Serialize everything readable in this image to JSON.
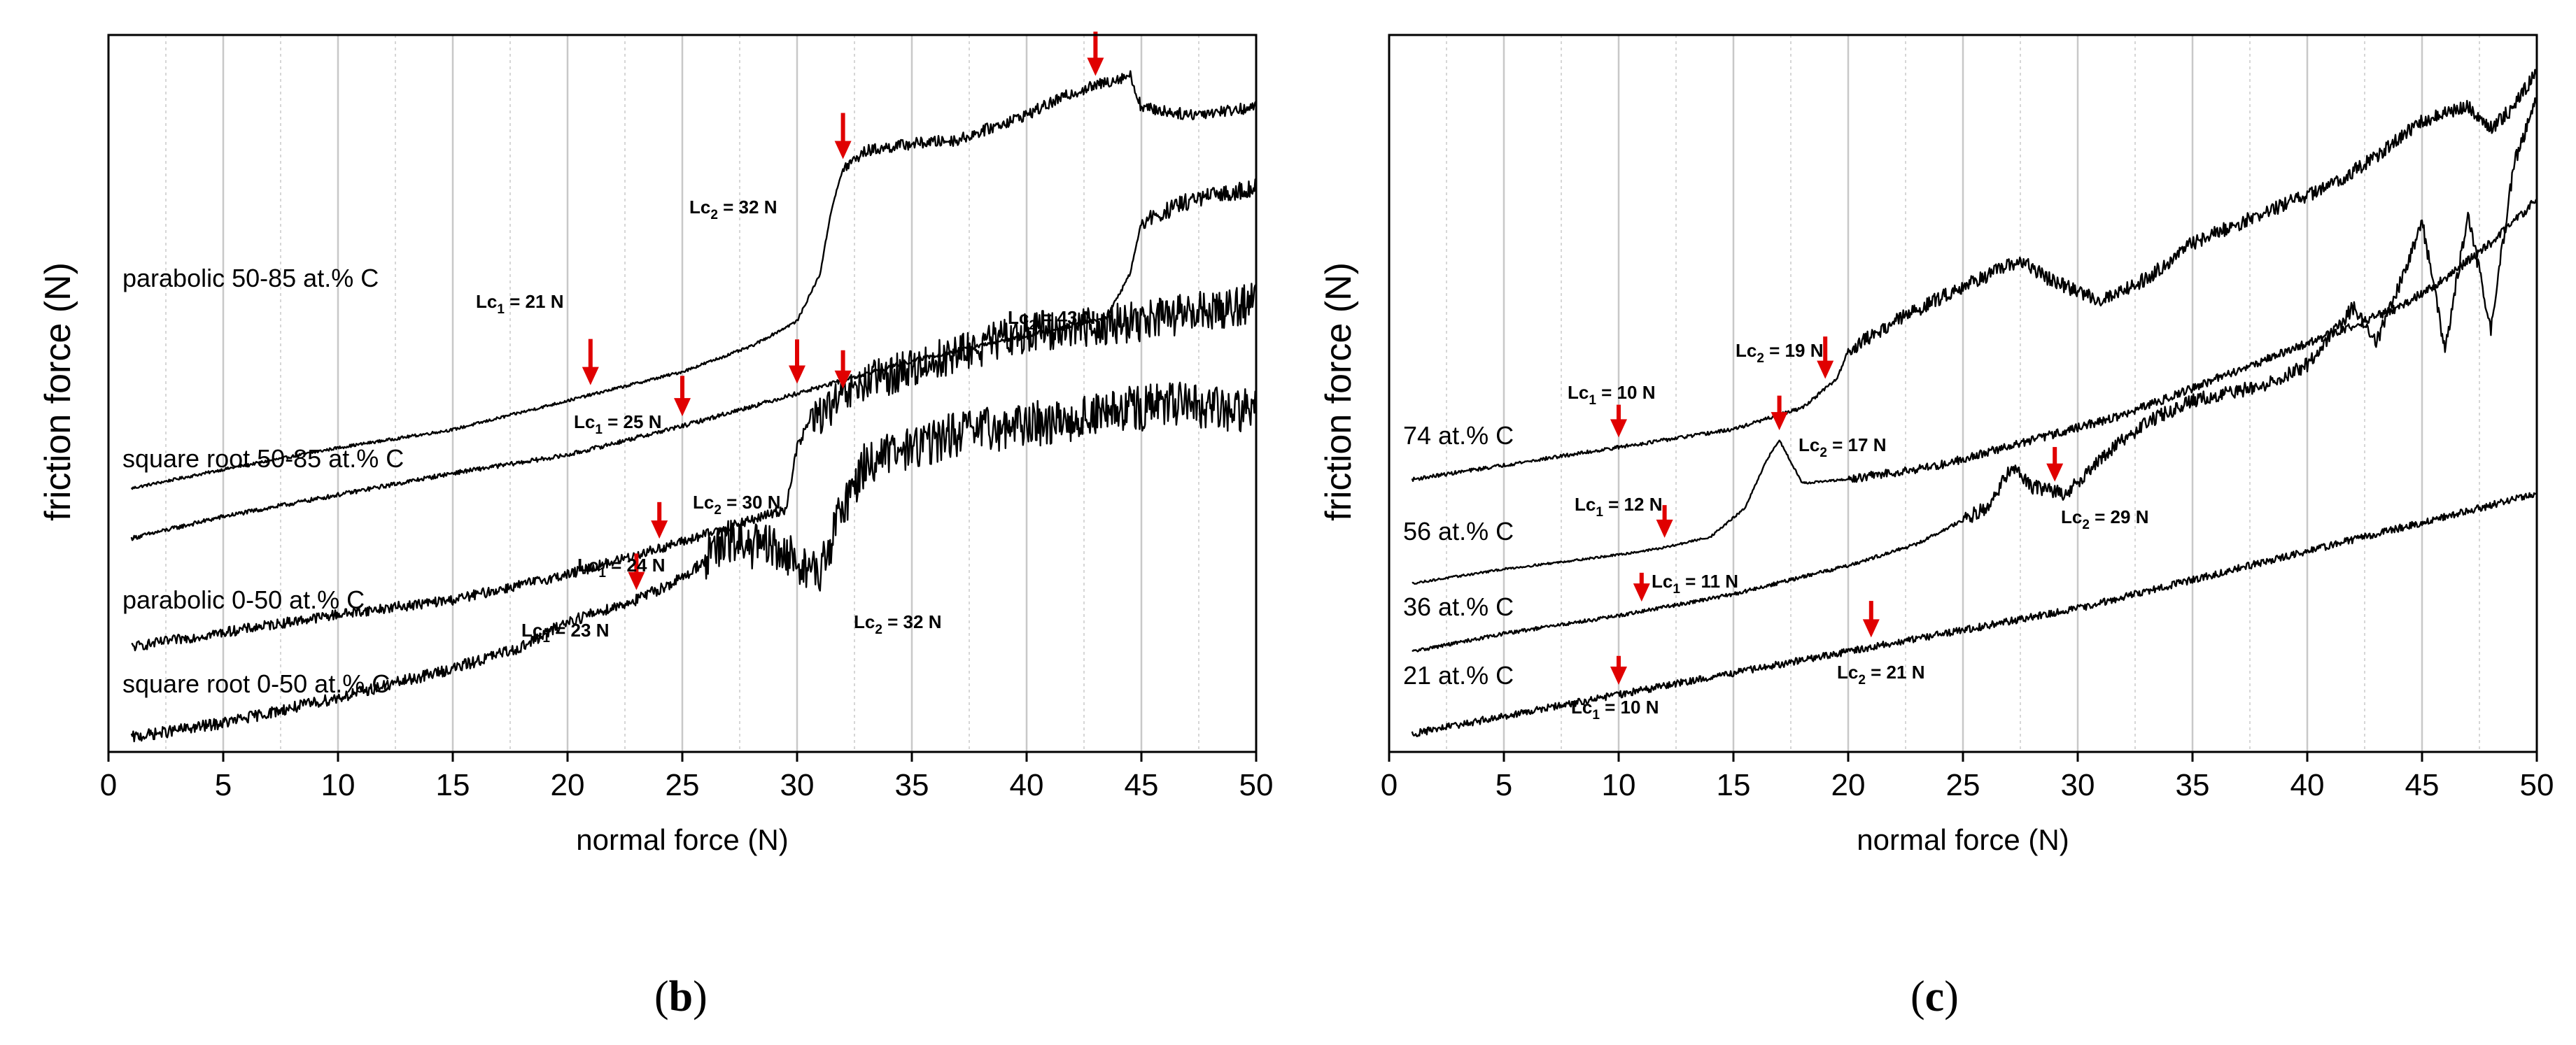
{
  "chart_data": [
    {
      "type": "line",
      "panel": "b",
      "xlabel": "normal force (N)",
      "ylabel": "friction force (N)",
      "xlim": [
        0,
        50
      ],
      "xticks": [
        0,
        5,
        10,
        15,
        20,
        25,
        30,
        35,
        40,
        45,
        50
      ],
      "grid": true,
      "series": [
        {
          "name": "parabolic 50-85 at.% C",
          "points": [
            [
              1,
              0.64
            ],
            [
              5,
              0.9
            ],
            [
              10,
              1.2
            ],
            [
              15,
              1.45
            ],
            [
              20,
              1.85
            ],
            [
              25,
              2.25
            ],
            [
              28,
              2.6
            ],
            [
              30,
              2.95
            ],
            [
              31,
              3.6
            ],
            [
              31.5,
              4.5
            ],
            [
              32,
              5.05
            ],
            [
              33,
              5.3
            ],
            [
              35,
              5.4
            ],
            [
              37,
              5.45
            ],
            [
              40,
              5.8
            ],
            [
              42,
              6.1
            ],
            [
              44.5,
              6.35
            ],
            [
              45,
              5.9
            ],
            [
              47,
              5.8
            ],
            [
              50,
              5.9
            ]
          ],
          "noise": 0.08,
          "noise_from": 32
        },
        {
          "name": "square root 50-85 at.% C",
          "points": [
            [
              1,
              -0.05
            ],
            [
              5,
              0.25
            ],
            [
              10,
              0.55
            ],
            [
              15,
              0.85
            ],
            [
              20,
              1.1
            ],
            [
              25,
              1.5
            ],
            [
              30,
              1.95
            ],
            [
              35,
              2.4
            ],
            [
              40,
              2.75
            ],
            [
              43.5,
              3.0
            ],
            [
              44.5,
              3.6
            ],
            [
              45,
              4.3
            ],
            [
              47,
              4.6
            ],
            [
              50,
              4.8
            ]
          ],
          "noise": 0.12,
          "noise_from": 45
        },
        {
          "name": "parabolic 0-50 at.% C",
          "points": [
            [
              1,
              -1.55
            ],
            [
              5,
              -1.35
            ],
            [
              10,
              -1.1
            ],
            [
              15,
              -0.9
            ],
            [
              20,
              -0.55
            ],
            [
              25,
              -0.1
            ],
            [
              29.5,
              0.35
            ],
            [
              30,
              1.2
            ],
            [
              30.5,
              1.55
            ],
            [
              33,
              2.1
            ],
            [
              36,
              2.4
            ],
            [
              40,
              2.8
            ],
            [
              45,
              2.95
            ],
            [
              50,
              3.2
            ]
          ],
          "noise": 0.28,
          "noise_from": 30.5
        },
        {
          "name": "square root 0-50 at.% C",
          "points": [
            [
              1,
              -2.8
            ],
            [
              5,
              -2.6
            ],
            [
              10,
              -2.25
            ],
            [
              15,
              -1.85
            ],
            [
              18,
              -1.55
            ],
            [
              20,
              -1.2
            ],
            [
              23,
              -0.9
            ],
            [
              25,
              -0.6
            ],
            [
              27,
              -0.1
            ],
            [
              29,
              -0.2
            ],
            [
              31,
              -0.55
            ],
            [
              32,
              0.4
            ],
            [
              33,
              1.0
            ],
            [
              37,
              1.4
            ],
            [
              42,
              1.6
            ],
            [
              46,
              1.8
            ],
            [
              50,
              1.7
            ]
          ],
          "noise": 0.32,
          "noise_from": 26
        },
        {
          "name": "Lc1 = 21 N",
          "value": 21
        },
        {
          "name": "Lc2 = 32 N",
          "value": 32
        },
        {
          "name": "Lc1 = 25 N",
          "value": 25
        },
        {
          "name": "Lc2 = 43 N",
          "value": 43
        },
        {
          "name": "Lc1 = 24 N",
          "value": 24
        },
        {
          "name": "Lc2 = 30 N",
          "value": 30
        },
        {
          "name": "Lc1 = 23 N",
          "value": 23
        },
        {
          "name": "Lc2 = 32 N",
          "value": 32
        }
      ]
    },
    {
      "type": "line",
      "panel": "c",
      "xlabel": "normal force (N)",
      "ylabel": "friction force (N)",
      "xlim": [
        0,
        50
      ],
      "xticks": [
        0,
        5,
        10,
        15,
        20,
        25,
        30,
        35,
        40,
        45,
        50
      ],
      "grid": true,
      "series": [
        {
          "name": "74 at.% C",
          "points": [
            [
              1,
              3.5
            ],
            [
              5,
              3.7
            ],
            [
              10,
              3.95
            ],
            [
              15,
              4.2
            ],
            [
              18,
              4.5
            ],
            [
              19.5,
              4.9
            ],
            [
              20,
              5.3
            ],
            [
              22,
              5.7
            ],
            [
              25,
              6.2
            ],
            [
              27.5,
              6.55
            ],
            [
              29,
              6.25
            ],
            [
              31,
              6.0
            ],
            [
              33,
              6.3
            ],
            [
              35,
              6.8
            ],
            [
              38,
              7.2
            ],
            [
              41,
              7.6
            ],
            [
              43,
              8.0
            ],
            [
              45,
              8.5
            ],
            [
              47,
              8.7
            ],
            [
              48,
              8.4
            ],
            [
              49,
              8.7
            ],
            [
              50,
              9.2
            ]
          ],
          "noise": 0.1,
          "noise_from": 20
        },
        {
          "name": "56 at.% C",
          "points": [
            [
              1,
              2.05
            ],
            [
              5,
              2.25
            ],
            [
              10,
              2.45
            ],
            [
              12,
              2.55
            ],
            [
              14,
              2.7
            ],
            [
              15.5,
              3.1
            ],
            [
              16.5,
              3.8
            ],
            [
              17,
              4.05
            ],
            [
              18,
              3.45
            ],
            [
              20,
              3.5
            ],
            [
              24,
              3.7
            ],
            [
              28,
              4.05
            ],
            [
              32,
              4.4
            ],
            [
              36,
              4.9
            ],
            [
              40,
              5.4
            ],
            [
              44,
              5.9
            ],
            [
              46,
              6.3
            ],
            [
              48,
              6.8
            ],
            [
              50,
              7.4
            ]
          ],
          "noise": 0.06,
          "noise_from": 20
        },
        {
          "name": "36 at.% C",
          "points": [
            [
              1,
              1.1
            ],
            [
              5,
              1.35
            ],
            [
              10,
              1.6
            ],
            [
              15,
              1.9
            ],
            [
              20,
              2.3
            ],
            [
              23,
              2.6
            ],
            [
              26,
              3.1
            ],
            [
              27.2,
              3.7
            ],
            [
              28,
              3.4
            ],
            [
              29.5,
              3.3
            ],
            [
              31,
              3.8
            ],
            [
              33,
              4.3
            ],
            [
              35,
              4.6
            ],
            [
              38,
              4.8
            ],
            [
              40,
              5.1
            ],
            [
              42,
              5.9
            ],
            [
              43,
              5.4
            ],
            [
              44,
              6.2
            ],
            [
              45,
              7.1
            ],
            [
              46,
              5.3
            ],
            [
              47,
              7.2
            ],
            [
              48,
              5.6
            ],
            [
              49,
              7.9
            ],
            [
              50,
              8.8
            ]
          ],
          "noise": 0.1,
          "noise_from": 25
        },
        {
          "name": "21 at.% C",
          "points": [
            [
              1,
              -0.05
            ],
            [
              5,
              0.2
            ],
            [
              10,
              0.5
            ],
            [
              15,
              0.8
            ],
            [
              20,
              1.1
            ],
            [
              25,
              1.4
            ],
            [
              30,
              1.7
            ],
            [
              35,
              2.1
            ],
            [
              40,
              2.5
            ],
            [
              45,
              2.9
            ],
            [
              50,
              3.3
            ]
          ],
          "noise": 0.05,
          "noise_from": 1
        },
        {
          "name": "Lc1 = 10 N",
          "value": 10
        },
        {
          "name": "Lc2 = 19 N",
          "value": 19
        },
        {
          "name": "Lc2 = 17 N",
          "value": 17
        },
        {
          "name": "Lc1 = 12 N",
          "value": 12
        },
        {
          "name": "Lc1 = 11 N",
          "value": 11
        },
        {
          "name": "Lc2 = 29 N",
          "value": 29
        },
        {
          "name": "Lc1 = 10 N",
          "value": 10
        },
        {
          "name": "Lc2 = 21 N",
          "value": 21
        }
      ]
    }
  ],
  "panels": {
    "b": {
      "letter": "b",
      "series_labels": [
        "parabolic 50-85 at.% C",
        "square root 50-85 at.% C",
        "parabolic 0-50 at.% C",
        "square root 0-50 at.% C"
      ],
      "annotations": [
        "Lc",
        "1",
        " = 21 N",
        "Lc",
        "2",
        " = 32 N",
        "Lc",
        "1",
        " = 25 N",
        "Lc",
        "2",
        " = 43 N",
        "Lc",
        "1",
        " = 24 N",
        "Lc",
        "2",
        " = 30 N",
        "Lc",
        "1",
        " = 23 N",
        "Lc",
        "2",
        " = 32 N"
      ]
    },
    "c": {
      "letter": "c",
      "series_labels": [
        "74 at.% C",
        "56 at.% C",
        "36 at.% C",
        "21 at.% C"
      ],
      "annotations": [
        "Lc",
        "1",
        " = 10 N",
        "Lc",
        "2",
        " = 19 N",
        "Lc",
        "2",
        " = 17 N",
        "Lc",
        "1",
        " = 12 N",
        "Lc",
        "1",
        " = 11 N",
        "Lc",
        "2",
        " = 29 N",
        "Lc",
        "1",
        " = 10 N",
        "Lc",
        "2",
        " = 21 N"
      ]
    }
  },
  "colors": {
    "axis": "#000000",
    "grid": "#c8c8c8",
    "line": "#000000",
    "arrow": "#e00000"
  }
}
